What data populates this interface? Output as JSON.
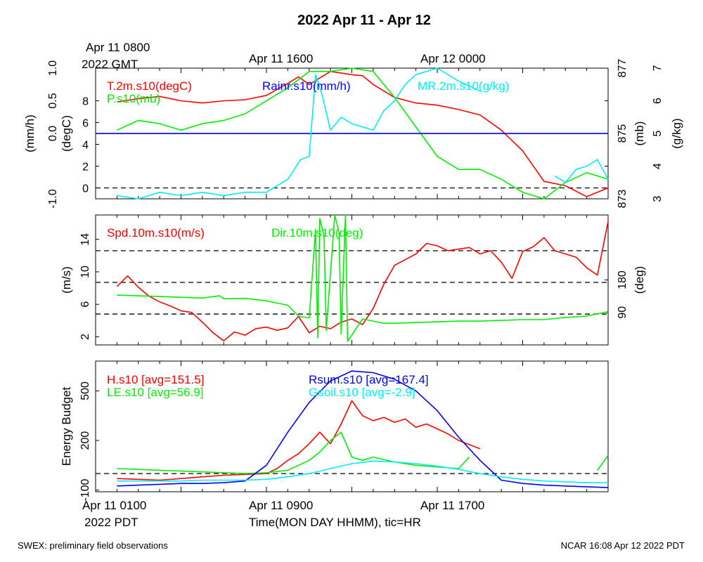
{
  "title": "2022 Apr 11 - Apr 12",
  "top_time_labels": [
    {
      "line1": "Apr 11 0800",
      "line2": "2022 GMT"
    },
    {
      "line1": "Apr 11 1600",
      "line2": ""
    },
    {
      "line1": "Apr 12 0000",
      "line2": ""
    }
  ],
  "bottom_time_labels": [
    {
      "line1": "Apr 11 0100",
      "line2": "2022 PDT"
    },
    {
      "line1": "Apr 11 0900",
      "line2": ""
    },
    {
      "line1": "Apr 11 1700",
      "line2": ""
    }
  ],
  "xlabel": "Time(MON DAY HHMM), tic=HR",
  "footer_left": "SWEX: preliminary field observations",
  "footer_right": "NCAR 16:08 Apr 12 2022 PDT",
  "chart_data": [
    {
      "type": "line",
      "panel": "meteorology",
      "x_unit": "hours since Apr 11 0000 PDT",
      "xlim": [
        0,
        24
      ],
      "axes": {
        "rain": {
          "label": "(mm/h)",
          "ylim": [
            -1.0,
            1.0
          ],
          "ticks": [
            "-1.0",
            "0.0",
            "0.5",
            "1.0"
          ],
          "tick_values": [
            -1.0,
            0.0,
            0.5,
            1.0
          ]
        },
        "temp": {
          "label": "(degC)",
          "ylim": [
            -1,
            11
          ],
          "ticks": [
            "0",
            "2",
            "4",
            "6",
            "8"
          ],
          "tick_values": [
            0,
            2,
            4,
            6,
            8
          ]
        },
        "pres": {
          "label": "(mb)",
          "ylim": [
            873,
            877
          ],
          "ticks": [
            "873",
            "875",
            "877"
          ],
          "tick_values": [
            873,
            875,
            877
          ]
        },
        "mr": {
          "label": "(g/kg)",
          "ylim": [
            3,
            7
          ],
          "ticks": [
            "3",
            "4",
            "5",
            "6",
            "7"
          ],
          "tick_values": [
            3,
            4,
            5,
            6,
            7
          ]
        }
      },
      "reference_lines": [
        {
          "axis": "rain",
          "value": 0.0,
          "style": "solid"
        },
        {
          "axis": "temp",
          "value": 0,
          "style": "dashed"
        }
      ],
      "series": [
        {
          "name": "T.2m.s10(degC)",
          "color": "#ff0000",
          "axis": "temp",
          "x": [
            1,
            2,
            3,
            4,
            5,
            6,
            7,
            8,
            9,
            9.5,
            10,
            11,
            12,
            12.5,
            13,
            14,
            15,
            16,
            17,
            18,
            19,
            20,
            21,
            22,
            23,
            24
          ],
          "y": [
            7.9,
            8.2,
            8.4,
            8.0,
            7.8,
            8.0,
            8.1,
            8.5,
            9.6,
            10.2,
            9.5,
            10.7,
            10.4,
            10.3,
            9.5,
            8.3,
            7.8,
            7.6,
            7.2,
            6.7,
            5.3,
            3.4,
            0.6,
            0.2,
            -0.8,
            0.0
          ]
        },
        {
          "name": "P.s10(mb)",
          "color": "#00ee00",
          "axis": "pres",
          "x": [
            1,
            2,
            3,
            4,
            5,
            6,
            7,
            8,
            9,
            10,
            11,
            12,
            13,
            14,
            15,
            16,
            17,
            18,
            19,
            20,
            21,
            22,
            23,
            24
          ],
          "y": [
            875.1,
            875.4,
            875.3,
            875.1,
            875.3,
            875.4,
            875.6,
            876.0,
            876.4,
            876.9,
            876.9,
            877.0,
            876.9,
            876.1,
            875.2,
            874.3,
            873.9,
            873.9,
            873.6,
            873.2,
            872.9,
            873.5,
            873.8,
            873.6
          ]
        },
        {
          "name": "Rainr.s10(mm/h)",
          "color": "#0000ff",
          "axis": "rain",
          "x": [
            0,
            24
          ],
          "y": [
            0,
            0
          ]
        },
        {
          "name": "MR.2m.s10(g/kg)",
          "color": "#00eeff",
          "axis": "mr",
          "x": [
            1,
            2,
            3,
            4,
            5,
            6,
            7,
            8,
            9,
            9.6,
            10,
            10.3,
            10.6,
            11,
            11.5,
            12,
            12.5,
            13,
            13.5,
            14,
            14.5,
            15,
            16,
            17,
            18,
            21,
            21.5,
            22,
            22.5,
            23,
            23.5,
            24
          ],
          "y": [
            3.1,
            3.0,
            3.2,
            3.1,
            3.2,
            3.1,
            3.2,
            3.2,
            3.6,
            4.2,
            4.3,
            6.8,
            6.2,
            5.1,
            5.5,
            5.3,
            5.2,
            5.1,
            5.7,
            6.0,
            6.5,
            6.8,
            7.0,
            6.6,
            6.3,
            null,
            3.7,
            3.5,
            3.9,
            4.0,
            4.2,
            3.6
          ]
        }
      ]
    },
    {
      "type": "line",
      "panel": "wind",
      "x_unit": "hours since Apr 11 0000 PDT",
      "xlim": [
        0,
        24
      ],
      "axes": {
        "spd": {
          "label": "(m/s)",
          "ylim": [
            1,
            17
          ],
          "ticks": [
            "2",
            "6",
            "10",
            "14"
          ],
          "tick_values": [
            2,
            6,
            10,
            14
          ]
        },
        "dir": {
          "label": "(deg)",
          "ylim": [
            0,
            360
          ],
          "ticks": [
            "90",
            "180"
          ],
          "tick_values": [
            90,
            180
          ]
        }
      },
      "reference_lines": [
        {
          "axis": "spd",
          "value": 12.6,
          "style": "dashed"
        },
        {
          "axis": "spd",
          "value": 8.7,
          "style": "dashed"
        },
        {
          "axis": "spd",
          "value": 4.8,
          "style": "dashed"
        }
      ],
      "series": [
        {
          "name": "Spd.10m.s10(m/s)",
          "color": "#ff0000",
          "axis": "spd",
          "x": [
            1,
            1.5,
            2,
            2.5,
            3,
            3.5,
            4,
            4.5,
            5,
            5.5,
            6,
            6.5,
            7,
            7.5,
            8,
            8.5,
            9,
            9.5,
            10,
            10.5,
            11,
            11.5,
            12,
            12.5,
            13,
            13.5,
            14,
            14.5,
            15,
            15.5,
            16,
            16.5,
            17,
            17.5,
            18,
            18.5,
            19,
            19.5,
            20,
            20.5,
            21,
            21.5,
            22,
            22.5,
            23,
            23.5,
            24
          ],
          "y": [
            8.2,
            9.5,
            8.1,
            7.0,
            6.3,
            5.8,
            5.2,
            5.0,
            3.8,
            2.5,
            1.5,
            2.6,
            2.2,
            3.0,
            3.2,
            2.8,
            3.1,
            4.5,
            2.5,
            3.3,
            3.0,
            3.8,
            4.2,
            3.5,
            5.5,
            8.5,
            10.8,
            11.5,
            12.2,
            13.5,
            13.2,
            12.6,
            12.8,
            13.0,
            12.2,
            12.6,
            11.2,
            9.2,
            12.5,
            13.1,
            14.2,
            12.6,
            12.2,
            11.8,
            10.5,
            9.6,
            16.2
          ]
        },
        {
          "name": "Dir.10m.s10(deg)",
          "color": "#00ee00",
          "axis": "dir",
          "x": [
            1,
            2,
            3,
            4,
            5,
            5.8,
            6,
            7,
            8,
            9,
            9.5,
            10,
            10.3,
            10.4,
            10.5,
            10.7,
            10.8,
            11.2,
            11.4,
            11.5,
            11.7,
            11.8,
            12.5,
            13,
            13.5,
            14,
            15,
            16,
            17,
            18,
            19,
            20,
            21,
            22,
            23,
            24
          ],
          "y": [
            138,
            136,
            134,
            132,
            130,
            136,
            128,
            129,
            122,
            110,
            80,
            75,
            320,
            20,
            350,
            300,
            40,
            360,
            310,
            30,
            360,
            10,
            72,
            66,
            60,
            60,
            62,
            64,
            66,
            66,
            68,
            70,
            70,
            76,
            80,
            92
          ]
        }
      ]
    },
    {
      "type": "line",
      "panel": "energy",
      "x_unit": "hours since Apr 11 0000 PDT",
      "xlim": [
        0,
        24
      ],
      "axes": {
        "w": {
          "label": "Energy Budget",
          "ylim": [
            -110,
            680
          ],
          "ticks": [
            "-100",
            "200",
            "500"
          ],
          "tick_values": [
            -100,
            200,
            500
          ]
        }
      },
      "reference_lines": [
        {
          "axis": "w",
          "value": 0,
          "style": "dashed"
        }
      ],
      "series": [
        {
          "name": "H.s10",
          "avg_label": "[avg=151.5]",
          "color": "#ff0000",
          "x": [
            1,
            2,
            3,
            4,
            5,
            6,
            7,
            8,
            8.5,
            9,
            9.5,
            10,
            10.5,
            11,
            11.5,
            12,
            12.5,
            13,
            13.5,
            14,
            14.5,
            15,
            15.5,
            16,
            16.5,
            17,
            18
          ],
          "y": [
            -30,
            -35,
            -40,
            -30,
            -20,
            -10,
            -5,
            0,
            30,
            80,
            120,
            180,
            250,
            180,
            300,
            440,
            350,
            320,
            340,
            310,
            330,
            280,
            300,
            270,
            240,
            200,
            150
          ]
        },
        {
          "name": "LE.s10",
          "avg_label": "[avg=56.9]",
          "color": "#00ee00",
          "x": [
            1,
            2,
            3,
            4,
            5,
            6,
            7,
            8,
            9,
            10,
            10.5,
            11,
            11.5,
            12,
            12.5,
            13,
            14,
            15,
            16,
            17,
            17.5,
            null,
            23.5,
            24
          ],
          "y": [
            30,
            25,
            20,
            15,
            10,
            5,
            0,
            5,
            20,
            80,
            130,
            200,
            250,
            100,
            80,
            100,
            70,
            50,
            40,
            30,
            100,
            null,
            20,
            110
          ]
        },
        {
          "name": "Rsum.s10",
          "avg_label": "[avg=167.4]",
          "color": "#0000ff",
          "x": [
            1,
            2,
            3,
            4,
            5,
            6,
            7,
            8,
            8.5,
            9,
            10,
            11,
            12,
            13,
            14,
            15,
            16,
            17,
            18,
            19,
            20,
            21,
            22,
            23,
            24
          ],
          "y": [
            -75,
            -70,
            -65,
            -60,
            -60,
            -55,
            -45,
            50,
            150,
            250,
            430,
            560,
            620,
            610,
            570,
            500,
            380,
            220,
            80,
            -40,
            -60,
            -70,
            -75,
            -80,
            -85
          ]
        },
        {
          "name": "Gsoil.s10",
          "avg_label": "[avg=-2.9]",
          "color": "#00eeff",
          "x": [
            1,
            2,
            3,
            4,
            5,
            6,
            7,
            8,
            9,
            10,
            11,
            12,
            13,
            14,
            15,
            16,
            17,
            18,
            19,
            20,
            21,
            22,
            23,
            24
          ],
          "y": [
            -45,
            -45,
            -45,
            -45,
            -40,
            -40,
            -40,
            -35,
            -20,
            0,
            30,
            60,
            75,
            70,
            60,
            45,
            25,
            0,
            -20,
            -35,
            -45,
            -50,
            -55,
            -55
          ]
        }
      ]
    }
  ]
}
